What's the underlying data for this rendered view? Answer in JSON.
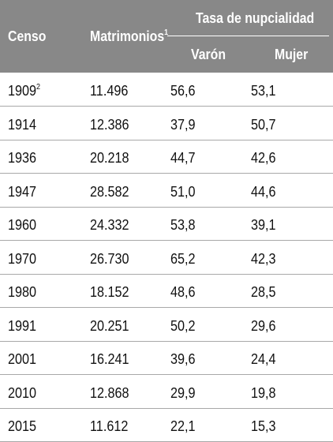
{
  "header": {
    "censo": "Censo",
    "matrimonios": "Matrimonios",
    "matrimonios_note": "1",
    "tasa_group": "Tasa de nupcialidad",
    "varon": "Varón",
    "mujer": "Mujer"
  },
  "rows": [
    {
      "censo": "1909",
      "note": "2",
      "matrimonios": "11.496",
      "varon": "56,6",
      "mujer": "53,1"
    },
    {
      "censo": "1914",
      "note": "",
      "matrimonios": "12.386",
      "varon": "37,9",
      "mujer": "50,7"
    },
    {
      "censo": "1936",
      "note": "",
      "matrimonios": "20.218",
      "varon": "44,7",
      "mujer": "42,6"
    },
    {
      "censo": "1947",
      "note": "",
      "matrimonios": "28.582",
      "varon": "51,0",
      "mujer": "44,6"
    },
    {
      "censo": "1960",
      "note": "",
      "matrimonios": "24.332",
      "varon": "53,8",
      "mujer": "39,1"
    },
    {
      "censo": "1970",
      "note": "",
      "matrimonios": "26.730",
      "varon": "65,2",
      "mujer": "42,3"
    },
    {
      "censo": "1980",
      "note": "",
      "matrimonios": "18.152",
      "varon": "48,6",
      "mujer": "28,5"
    },
    {
      "censo": "1991",
      "note": "",
      "matrimonios": "20.251",
      "varon": "50,2",
      "mujer": "29,6"
    },
    {
      "censo": "2001",
      "note": "",
      "matrimonios": "16.241",
      "varon": "39,6",
      "mujer": "24,4"
    },
    {
      "censo": "2010",
      "note": "",
      "matrimonios": "12.868",
      "varon": "29,9",
      "mujer": "19,8"
    },
    {
      "censo": "2015",
      "note": "",
      "matrimonios": "11.612",
      "varon": "22,1",
      "mujer": "15,3"
    }
  ]
}
